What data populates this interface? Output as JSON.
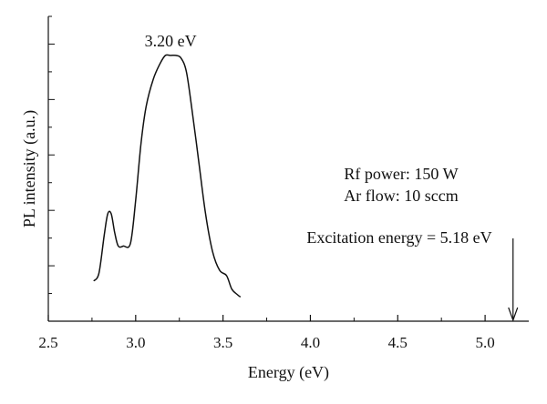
{
  "chart_data": {
    "type": "line",
    "title": "",
    "xlabel": "Energy (eV)",
    "ylabel": "PL intensity (a.u.)",
    "xlim": [
      2.5,
      5.25
    ],
    "ylim": [
      0,
      1
    ],
    "x_ticks": [
      "2.5",
      "3.0",
      "3.5",
      "4.0",
      "4.5",
      "5.0"
    ],
    "x_tick_values": [
      2.5,
      3.0,
      3.5,
      4.0,
      4.5,
      5.0
    ],
    "y_tick_labels_visible": false,
    "grid": false,
    "legend": "none",
    "line_color": "#111111",
    "series": [
      {
        "x": [
          2.76,
          2.79,
          2.82,
          2.84,
          2.86,
          2.88,
          2.9,
          2.93,
          2.97,
          3.0,
          3.03,
          3.06,
          3.1,
          3.14,
          3.17,
          3.2,
          3.23,
          3.26,
          3.29,
          3.32,
          3.36,
          3.4,
          3.44,
          3.48,
          3.52,
          3.55,
          3.58,
          3.6
        ],
        "y": [
          0.15,
          0.18,
          0.32,
          0.4,
          0.4,
          0.33,
          0.28,
          0.28,
          0.29,
          0.45,
          0.66,
          0.8,
          0.9,
          0.96,
          0.99,
          0.99,
          0.99,
          0.98,
          0.93,
          0.8,
          0.6,
          0.4,
          0.26,
          0.19,
          0.17,
          0.12,
          0.1,
          0.09
        ]
      }
    ],
    "peak_label": "3.20 eV",
    "peak_x": 3.2,
    "annotations": {
      "line1": "Rf power: 150 W",
      "line2": "Ar flow: 10 sccm",
      "line3": "Excitation energy = 5.18 eV"
    },
    "excitation_arrow_x": 5.16
  }
}
